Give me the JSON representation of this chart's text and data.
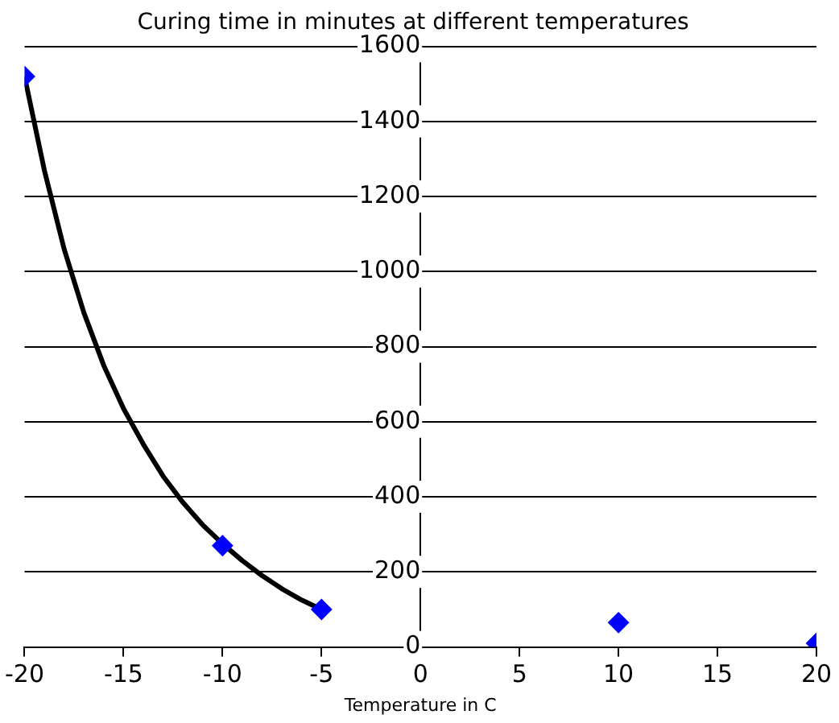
{
  "chart_data": {
    "type": "scatter",
    "title": "Curing time in minutes at different temperatures",
    "xlabel": "Temperature in C",
    "xlim": [
      -20,
      20
    ],
    "xticks": [
      -20,
      -15,
      -10,
      -5,
      0,
      5,
      10,
      15,
      20
    ],
    "ylim": [
      0,
      1600
    ],
    "yticks": [
      0,
      200,
      400,
      600,
      800,
      1000,
      1200,
      1400,
      1600
    ],
    "grid": "y",
    "legend": false,
    "marker": "diamond",
    "series": [
      {
        "color": "#0000ff",
        "x": [
          -20,
          -10,
          -5,
          10,
          20
        ],
        "values": [
          1520,
          270,
          100,
          65,
          10
        ]
      },
      {
        "type": "line",
        "color": "#000000",
        "marker": "none",
        "line_style": "solid",
        "x": [
          -20,
          -19,
          -18,
          -17,
          -16,
          -15,
          -14,
          -13,
          -12,
          -11,
          -10,
          -9,
          -8,
          -7,
          -6,
          -5
        ],
        "values": [
          1520,
          1270,
          1060,
          890,
          750,
          635,
          540,
          455,
          385,
          325,
          275,
          230,
          190,
          155,
          125,
          100
        ]
      }
    ]
  }
}
